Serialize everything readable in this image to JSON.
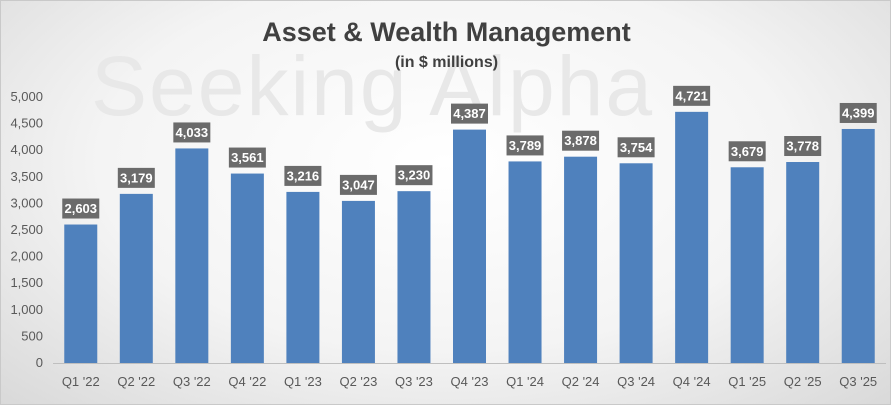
{
  "chart_data": {
    "type": "bar",
    "title": "Asset & Wealth Management",
    "subtitle": "(in $ millions)",
    "watermark": "Seeking Alpha",
    "categories": [
      "Q1 '22",
      "Q2 '22",
      "Q3 '22",
      "Q4 '22",
      "Q1 '23",
      "Q2 '23",
      "Q3 '23",
      "Q4 '23",
      "Q1 '24",
      "Q2 '24",
      "Q3 '24",
      "Q4 '24",
      "Q1 '25",
      "Q2 '25",
      "Q3 '25"
    ],
    "values": [
      2603,
      3179,
      4033,
      3561,
      3216,
      3047,
      3230,
      4387,
      3789,
      3878,
      3754,
      4721,
      3679,
      3778,
      4399
    ],
    "data_labels": [
      "2,603",
      "3,179",
      "4,033",
      "3,561",
      "3,216",
      "3,047",
      "3,230",
      "4,387",
      "3,789",
      "3,878",
      "3,754",
      "4,721",
      "3,679",
      "3,778",
      "4,399"
    ],
    "yticks": [
      0,
      500,
      1000,
      1500,
      2000,
      2500,
      3000,
      3500,
      4000,
      4500,
      5000
    ],
    "ytick_labels": [
      "0",
      "500",
      "1,000",
      "1,500",
      "2,000",
      "2,500",
      "3,000",
      "3,500",
      "4,000",
      "4,500",
      "5,000"
    ],
    "ylim": [
      0,
      5000
    ],
    "xlabel": "",
    "ylabel": "",
    "grid": false,
    "legend": "none",
    "bar_color": "#4f81bd",
    "label_bg_color": "#6b6b6b"
  }
}
